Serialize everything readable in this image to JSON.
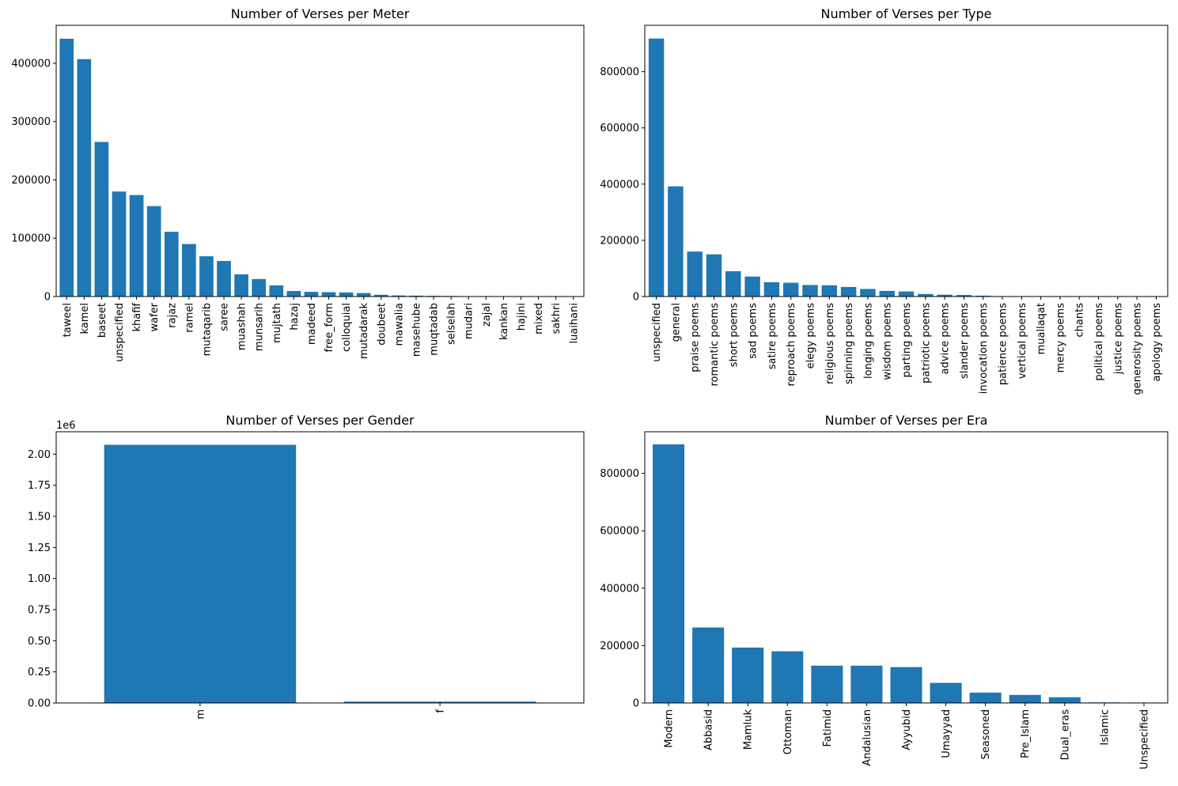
{
  "bar_color": "#1f77b4",
  "chart_data": [
    {
      "type": "bar",
      "title": "Number of Verses per Meter",
      "xlabel": "",
      "ylabel": "",
      "ylim": [
        0,
        465000
      ],
      "yticks": [
        0,
        100000,
        200000,
        300000,
        400000
      ],
      "ytick_labels": [
        "0",
        "100000",
        "200000",
        "300000",
        "400000"
      ],
      "offset_label": "",
      "categories": [
        "taweel",
        "kamel",
        "baseet",
        "unspecified",
        "khafif",
        "wafer",
        "rajaz",
        "ramel",
        "mutaqarib",
        "saree",
        "muashah",
        "munsarih",
        "mujtath",
        "hazaj",
        "madeed",
        "free_form",
        "colloquial",
        "mutadarak",
        "doubeet",
        "mawalia",
        "masehube",
        "muqtadab",
        "selselah",
        "mudari",
        "zajal",
        "kankan",
        "hajini",
        "mixed",
        "sakhri",
        "luaihani"
      ],
      "values": [
        442000,
        407000,
        265000,
        180000,
        174000,
        155000,
        111000,
        90000,
        69000,
        61000,
        38000,
        30000,
        19000,
        9500,
        8000,
        7500,
        7000,
        6000,
        3000,
        1800,
        1500,
        1200,
        1000,
        500,
        400,
        300,
        250,
        200,
        150,
        100
      ]
    },
    {
      "type": "bar",
      "title": "Number of Verses per Type",
      "xlabel": "",
      "ylabel": "",
      "ylim": [
        0,
        965000
      ],
      "yticks": [
        0,
        200000,
        400000,
        600000,
        800000
      ],
      "ytick_labels": [
        "0",
        "200000",
        "400000",
        "600000",
        "800000"
      ],
      "offset_label": "",
      "categories": [
        "unspecified",
        "general",
        "praise poems",
        "romantic poems",
        "short poems",
        "sad poems",
        "satire poems",
        "reproach poems",
        "elegy poems",
        "religious poems",
        "spinning poems",
        "longing poems",
        "wisdom poems",
        "parting poems",
        "patriotic poems",
        "advice poems",
        "slander poems",
        "invocation poems",
        "patience poems",
        "vertical poems",
        "muallaqat",
        "mercy poems",
        "chants",
        "political poems",
        "justice poems",
        "generosity poems",
        "apology poems"
      ],
      "values": [
        918000,
        392000,
        160000,
        150000,
        90000,
        71000,
        51000,
        49000,
        41000,
        40000,
        34000,
        27000,
        20000,
        18000,
        9000,
        6500,
        5500,
        3000,
        800,
        600,
        500,
        400,
        300,
        250,
        200,
        150,
        100
      ]
    },
    {
      "type": "bar",
      "title": "Number of Verses per Gender",
      "xlabel": "",
      "ylabel": "",
      "ylim": [
        0,
        2180000
      ],
      "yticks": [
        0,
        250000,
        500000,
        750000,
        1000000,
        1250000,
        1500000,
        1750000,
        2000000
      ],
      "ytick_labels": [
        "0.00",
        "0.25",
        "0.50",
        "0.75",
        "1.00",
        "1.25",
        "1.50",
        "1.75",
        "2.00"
      ],
      "offset_label": "1e6",
      "categories": [
        "m",
        "f"
      ],
      "values": [
        2075000,
        11000
      ]
    },
    {
      "type": "bar",
      "title": "Number of Verses per Era",
      "xlabel": "",
      "ylabel": "",
      "ylim": [
        0,
        945000
      ],
      "yticks": [
        0,
        200000,
        400000,
        600000,
        800000
      ],
      "ytick_labels": [
        "0",
        "200000",
        "400000",
        "600000",
        "800000"
      ],
      "offset_label": "",
      "categories": [
        "Modern",
        "Abbasid",
        "Mamluk",
        "Ottoman",
        "Fatimid",
        "Andalusian",
        "Ayyubid",
        "Umayyad",
        "Seasoned",
        "Pre_Islam",
        "Dual_eras",
        "Islamic",
        "Unspecified"
      ],
      "values": [
        901000,
        263000,
        193000,
        180000,
        130000,
        130000,
        125000,
        70000,
        36000,
        28000,
        20000,
        2000,
        1500
      ]
    }
  ]
}
